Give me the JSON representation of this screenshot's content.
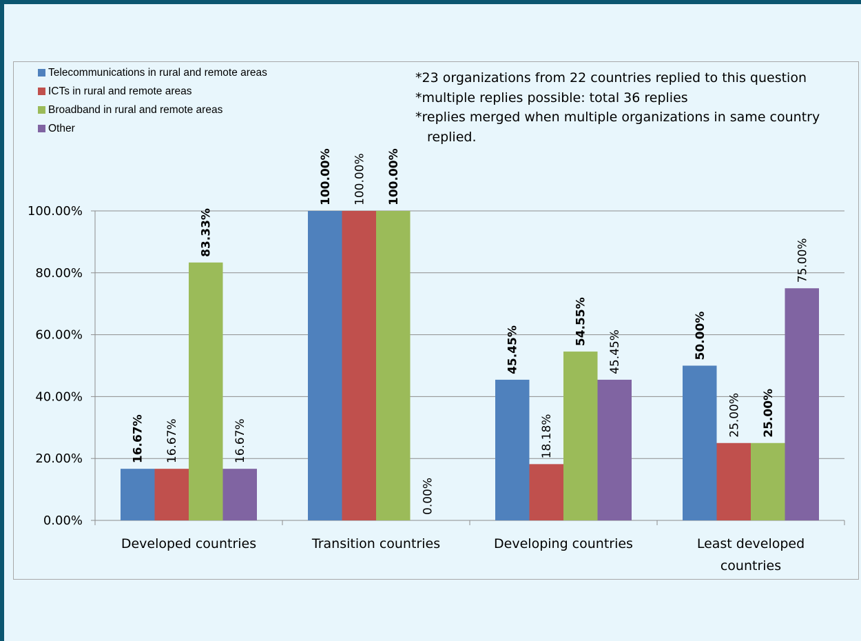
{
  "chart_data": {
    "type": "bar",
    "categories": [
      [
        "Developed countries"
      ],
      [
        "Transition countries"
      ],
      [
        "Developing countries"
      ],
      [
        "Least developed",
        "countries"
      ]
    ],
    "series": [
      {
        "name": "Telecommunications in rural and remote areas",
        "color": "#4f81bd",
        "values": [
          16.67,
          100,
          45.45,
          50
        ],
        "labels": [
          "16.67%",
          "100.00%",
          "45.45%",
          "50.00%"
        ],
        "label_bold": true
      },
      {
        "name": "ICTs in rural and remote areas",
        "color": "#c0504d",
        "values": [
          16.67,
          100,
          18.18,
          25
        ],
        "labels": [
          "16.67%",
          "100.00%",
          "18.18%",
          "25.00%"
        ],
        "label_bold": false
      },
      {
        "name": "Broadband in rural and remote areas",
        "color": "#9bbb59",
        "values": [
          83.33,
          100,
          54.55,
          25
        ],
        "labels": [
          "83.33%",
          "100.00%",
          "54.55%",
          "25.00%"
        ],
        "label_bold": true
      },
      {
        "name": "Other",
        "color": "#8064a2",
        "values": [
          16.67,
          0,
          45.45,
          75
        ],
        "labels": [
          "16.67%",
          "0.00%",
          "45.45%",
          "75.00%"
        ],
        "label_bold": false
      }
    ],
    "yticks": [
      "0.00%",
      "20.00%",
      "40.00%",
      "60.00%",
      "80.00%",
      "100.00%"
    ],
    "ylim": [
      0,
      100
    ],
    "grid": true,
    "legend_position": "top-left",
    "annotations": [
      "*23 organizations from 22 countries replied to this question",
      "*multiple replies possible: total 36 replies",
      "*replies merged when multiple organizations in same country replied."
    ]
  }
}
